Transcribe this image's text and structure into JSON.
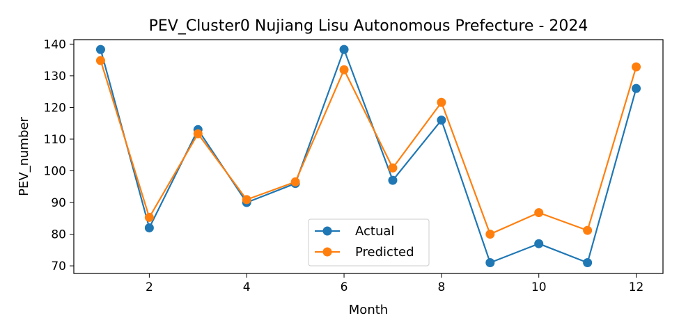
{
  "chart_data": {
    "type": "line",
    "title": "PEV_Cluster0 Nujiang Lisu Autonomous Prefecture - 2024",
    "xlabel": "Month",
    "ylabel": "PEV_number",
    "x": [
      1,
      2,
      3,
      4,
      5,
      6,
      7,
      8,
      9,
      10,
      11,
      12
    ],
    "xticks": [
      2,
      4,
      6,
      8,
      10,
      12
    ],
    "yticks": [
      70,
      80,
      90,
      100,
      110,
      120,
      130,
      140
    ],
    "xlim": [
      0.45,
      12.55
    ],
    "ylim": [
      67.6,
      141.4
    ],
    "grid": false,
    "legend_position": "bottom-center",
    "series": [
      {
        "name": "Actual",
        "color": "#1f77b4",
        "values": [
          138.3,
          82.0,
          113.0,
          90.0,
          96.0,
          138.3,
          97.0,
          116.0,
          71.0,
          77.0,
          71.0,
          126.0
        ]
      },
      {
        "name": "Predicted",
        "color": "#ff7f0e",
        "values": [
          134.8,
          85.3,
          111.7,
          90.9,
          96.5,
          131.9,
          100.9,
          121.6,
          80.0,
          86.8,
          81.2,
          132.8
        ]
      }
    ]
  }
}
